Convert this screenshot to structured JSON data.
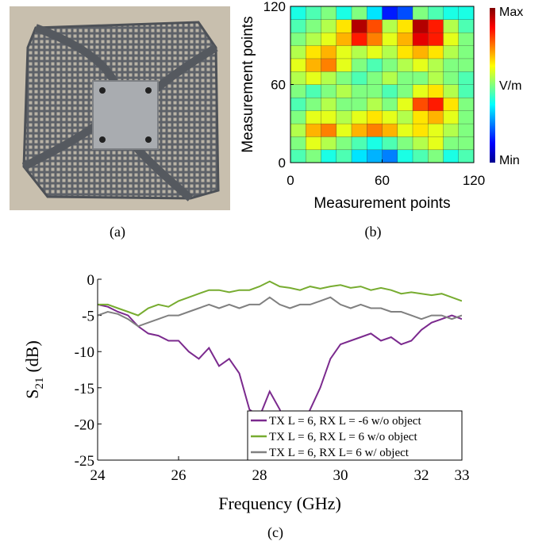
{
  "captions": [
    "(a)",
    "(b)",
    "(c)"
  ],
  "chart_data": [
    {
      "type": "heatmap",
      "xlabel": "Measurement points",
      "ylabel": "Measurement points",
      "xlim": [
        0,
        120
      ],
      "ylim": [
        0,
        120
      ],
      "xticks": [
        0,
        60,
        120
      ],
      "yticks": [
        0,
        60,
        120
      ],
      "colorbar_labels": [
        "Max",
        "V/m",
        "Min"
      ],
      "z": [
        [
          0.45,
          0.5,
          0.4,
          0.45,
          0.35,
          0.3,
          0.25,
          0.4,
          0.45,
          0.5,
          0.4,
          0.45
        ],
        [
          0.5,
          0.6,
          0.55,
          0.5,
          0.45,
          0.4,
          0.45,
          0.5,
          0.55,
          0.6,
          0.5,
          0.5
        ],
        [
          0.55,
          0.7,
          0.75,
          0.6,
          0.7,
          0.75,
          0.7,
          0.6,
          0.65,
          0.6,
          0.55,
          0.5
        ],
        [
          0.5,
          0.6,
          0.6,
          0.55,
          0.6,
          0.65,
          0.6,
          0.55,
          0.65,
          0.7,
          0.6,
          0.5
        ],
        [
          0.45,
          0.5,
          0.55,
          0.5,
          0.5,
          0.55,
          0.5,
          0.6,
          0.8,
          0.85,
          0.65,
          0.5
        ],
        [
          0.5,
          0.45,
          0.5,
          0.55,
          0.5,
          0.5,
          0.45,
          0.5,
          0.6,
          0.65,
          0.55,
          0.45
        ],
        [
          0.55,
          0.6,
          0.55,
          0.5,
          0.45,
          0.5,
          0.55,
          0.5,
          0.5,
          0.55,
          0.5,
          0.45
        ],
        [
          0.6,
          0.7,
          0.75,
          0.6,
          0.5,
          0.45,
          0.5,
          0.55,
          0.6,
          0.55,
          0.5,
          0.5
        ],
        [
          0.55,
          0.65,
          0.7,
          0.6,
          0.55,
          0.6,
          0.55,
          0.65,
          0.7,
          0.65,
          0.55,
          0.5
        ],
        [
          0.5,
          0.55,
          0.6,
          0.7,
          0.85,
          0.75,
          0.6,
          0.7,
          0.9,
          0.85,
          0.6,
          0.5
        ],
        [
          0.45,
          0.5,
          0.55,
          0.65,
          0.95,
          0.8,
          0.55,
          0.65,
          0.95,
          0.85,
          0.55,
          0.45
        ],
        [
          0.4,
          0.45,
          0.5,
          0.4,
          0.5,
          0.35,
          0.15,
          0.2,
          0.5,
          0.45,
          0.4,
          0.4
        ]
      ]
    },
    {
      "type": "line",
      "xlabel": "Frequency (GHz)",
      "ylabel": [
        "S",
        "21",
        "(dB)"
      ],
      "xlim": [
        24,
        33
      ],
      "ylim": [
        -25,
        0
      ],
      "xticks": [
        24,
        26,
        28,
        30,
        32,
        33
      ],
      "yticks": [
        0,
        -5,
        -10,
        -15,
        -20,
        -25
      ],
      "legend": "lower right",
      "x": [
        24,
        24.25,
        24.5,
        24.75,
        25,
        25.25,
        25.5,
        25.75,
        26,
        26.25,
        26.5,
        26.75,
        27,
        27.25,
        27.5,
        27.75,
        28,
        28.25,
        28.5,
        28.75,
        29,
        29.25,
        29.5,
        29.75,
        30,
        30.25,
        30.5,
        30.75,
        31,
        31.25,
        31.5,
        31.75,
        32,
        32.25,
        32.5,
        32.75,
        33
      ],
      "series": [
        {
          "name": "TX L = 6, RX L = -6 w/o object",
          "color": "#7b2a8e",
          "values": [
            -3.5,
            -3.8,
            -4.5,
            -5,
            -6.5,
            -7.5,
            -7.8,
            -8.5,
            -8.5,
            -10,
            -11,
            -9.5,
            -12,
            -11,
            -13,
            -18,
            -19,
            -15.5,
            -18,
            -22,
            -21,
            -18,
            -15,
            -11,
            -9,
            -8.5,
            -8,
            -7.5,
            -8.5,
            -8,
            -9,
            -8.5,
            -7,
            -6,
            -5.5,
            -5,
            -5.5
          ]
        },
        {
          "name": "TX L = 6, RX L = 6 w/o object",
          "color": "#77ac30",
          "values": [
            -3.5,
            -3.5,
            -4,
            -4.5,
            -5,
            -4,
            -3.5,
            -3.8,
            -3,
            -2.5,
            -2,
            -1.5,
            -1.5,
            -1.8,
            -1.5,
            -1.5,
            -1,
            -0.3,
            -1,
            -1.2,
            -1.5,
            -1,
            -1.3,
            -1,
            -0.8,
            -1.2,
            -1,
            -1.5,
            -1.2,
            -1.5,
            -2,
            -1.8,
            -2,
            -2.2,
            -2,
            -2.5,
            -3
          ]
        },
        {
          "name": "TX L = 6, RX L= 6 w/ object",
          "color": "#808080",
          "values": [
            -5,
            -4.5,
            -4.8,
            -5.5,
            -6.5,
            -6,
            -5.5,
            -5,
            -5,
            -4.5,
            -4,
            -3.5,
            -4,
            -3.5,
            -4,
            -3.5,
            -3.5,
            -2.5,
            -3.5,
            -4,
            -3.5,
            -3.5,
            -3,
            -2.5,
            -3.5,
            -4,
            -3.5,
            -4,
            -4,
            -4.5,
            -4.5,
            -5,
            -5.5,
            -5,
            -5,
            -5.5,
            -5
          ]
        }
      ]
    }
  ]
}
